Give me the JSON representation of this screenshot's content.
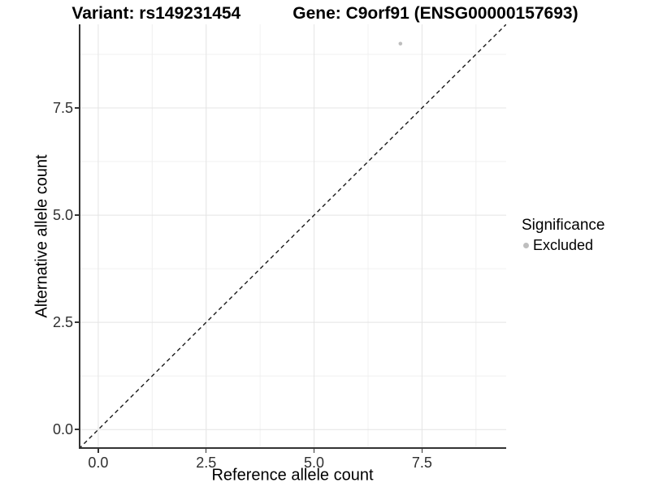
{
  "chart_data": {
    "type": "scatter",
    "title_parts": {
      "variant": "Variant: rs149231454",
      "gene": "Gene: C9orf91 (ENSG00000157693)"
    },
    "xlabel": "Reference allele count",
    "ylabel": "Alternative allele count",
    "xlim": [
      -0.45,
      9.45
    ],
    "ylim": [
      -0.45,
      9.45
    ],
    "x_ticks": {
      "values": [
        0,
        2.5,
        5,
        7.5
      ],
      "labels": [
        "0.0",
        "2.5",
        "5.0",
        "7.5"
      ]
    },
    "y_ticks": {
      "values": [
        0,
        2.5,
        5,
        7.5
      ],
      "labels": [
        "0.0",
        "2.5",
        "5.0",
        "7.5"
      ]
    },
    "minor_ticks": [
      1.25,
      3.75,
      6.25,
      8.75
    ],
    "grid": true,
    "reference_line": {
      "type": "identity",
      "slope": 1,
      "intercept": 0,
      "style": "dashed",
      "color": "#1A1A1A"
    },
    "series": [
      {
        "name": "Excluded",
        "color": "#BEBEBE",
        "points": [
          {
            "x": 7,
            "y": 9
          }
        ]
      }
    ],
    "legend": {
      "title": "Significance",
      "position": "right",
      "items": [
        {
          "label": "Excluded",
          "color": "#BEBEBE",
          "marker": "circle"
        }
      ]
    },
    "colors": {
      "background": "#FFFFFF",
      "grid_major": "#E4E4E4",
      "grid_minor": "#F0F0F0",
      "axis_line": "#333333",
      "tick_text": "#303030",
      "point": "#BEBEBE"
    }
  }
}
